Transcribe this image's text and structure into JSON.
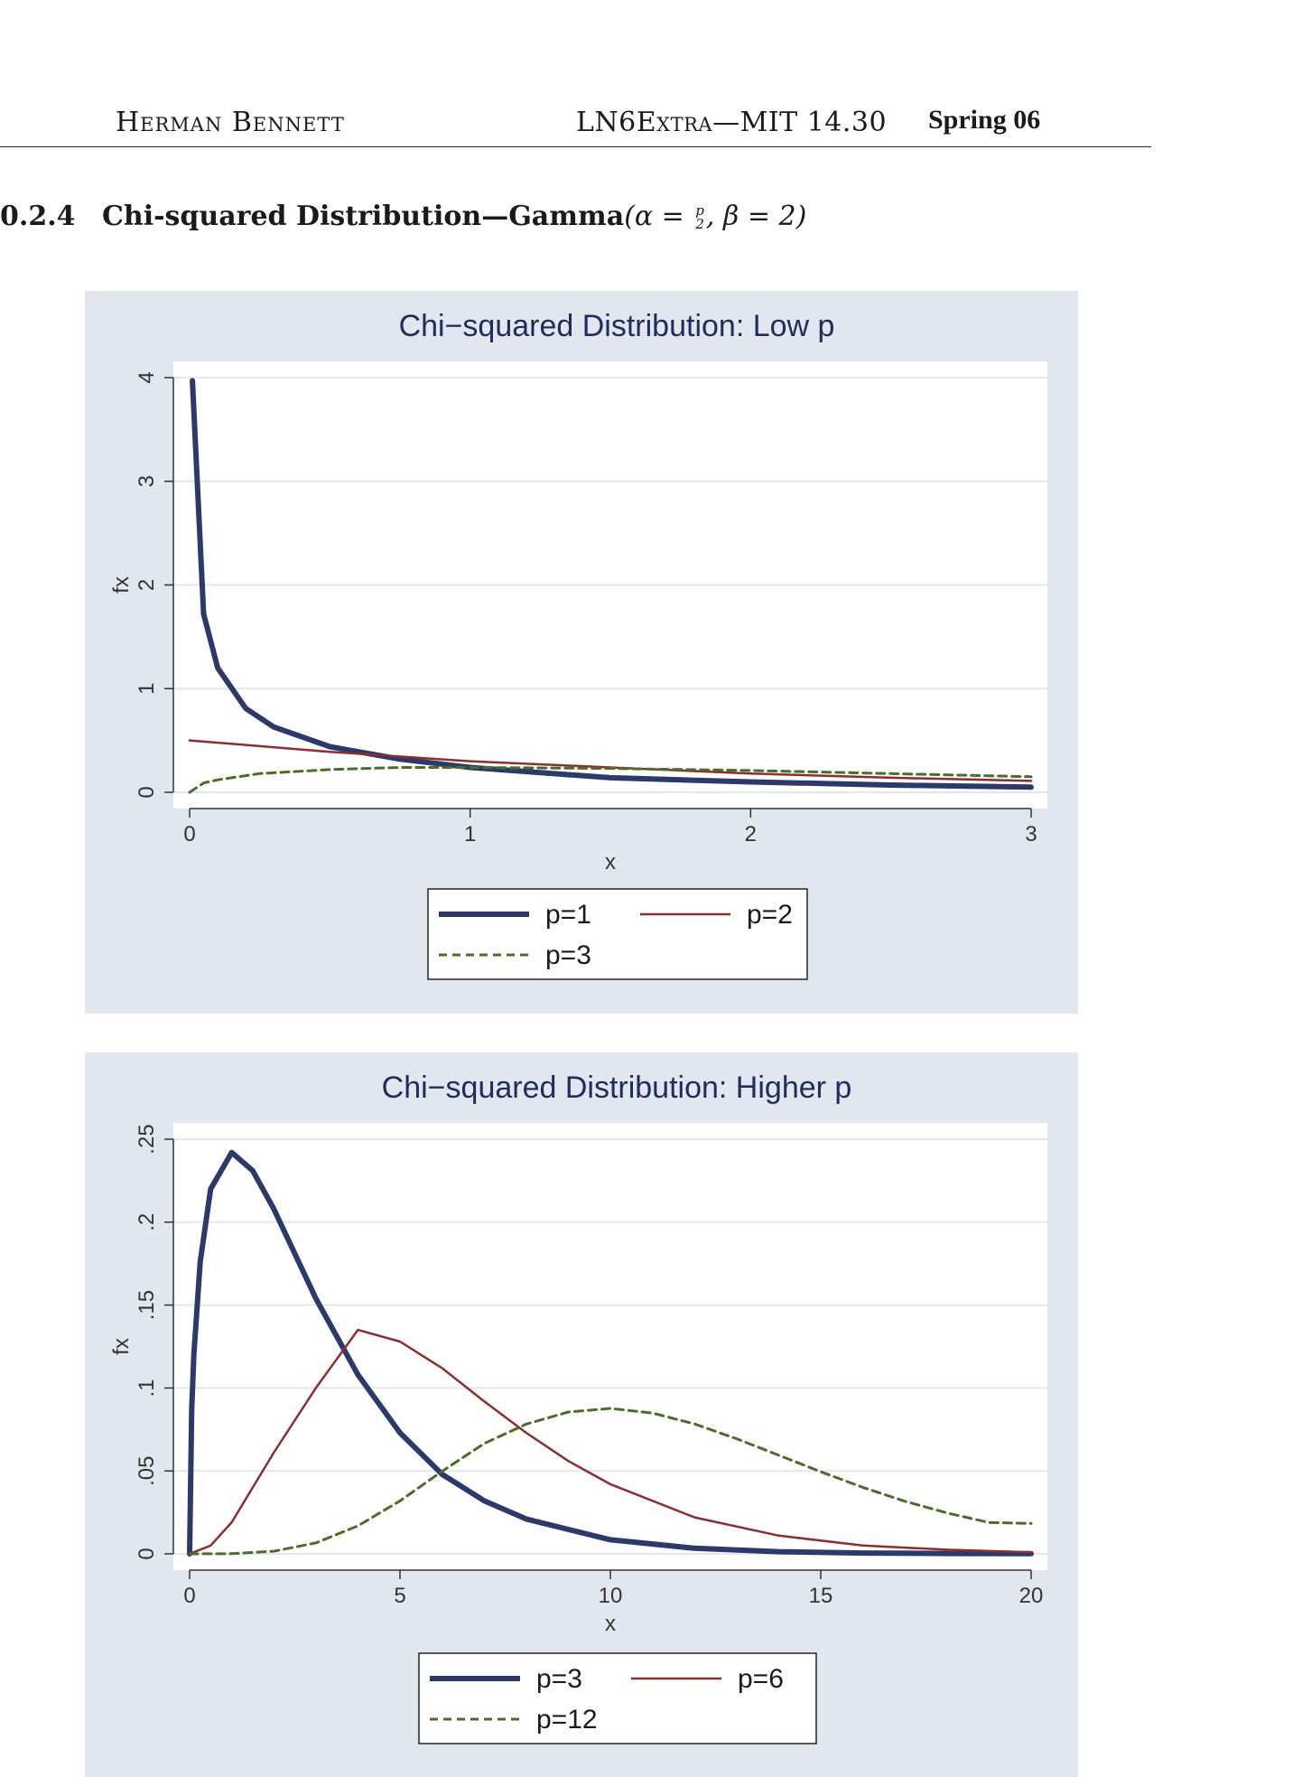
{
  "header": {
    "left": "Herman Bennett",
    "middle": "LN6Extra—MIT 14.30",
    "right": "Spring 06"
  },
  "section": {
    "number": "0.2.4",
    "title": "Chi-squared Distribution—Gamma",
    "formula_open": "(α =",
    "frac_num": "p",
    "frac_den": "2",
    "formula_close": ", β = 2)"
  },
  "chart_data": [
    {
      "type": "line",
      "title": "Chi−squared Distribution: Low p",
      "xlabel": "x",
      "ylabel": "fx",
      "xlim": [
        0,
        3
      ],
      "ylim": [
        0,
        4
      ],
      "xticks": [
        "0",
        "1",
        "2",
        "3"
      ],
      "yticks": [
        "0",
        "1",
        "2",
        "3",
        "4"
      ],
      "grid": true,
      "legend_position": "bottom",
      "series": [
        {
          "name": "p=1",
          "color": "#2b3a6b",
          "style": "thick-solid",
          "x": [
            0.01,
            0.05,
            0.1,
            0.2,
            0.3,
            0.5,
            0.75,
            1.0,
            1.5,
            2.0,
            2.5,
            3.0
          ],
          "y": [
            3.97,
            1.72,
            1.2,
            0.81,
            0.63,
            0.44,
            0.32,
            0.24,
            0.14,
            0.1,
            0.07,
            0.05
          ]
        },
        {
          "name": "p=2",
          "color": "#8b2e2e",
          "style": "solid",
          "x": [
            0,
            0.5,
            1.0,
            1.5,
            2.0,
            2.5,
            3.0
          ],
          "y": [
            0.5,
            0.39,
            0.3,
            0.24,
            0.18,
            0.14,
            0.11
          ]
        },
        {
          "name": "p=3",
          "color": "#4e6b2a",
          "style": "dashed",
          "x": [
            0,
            0.05,
            0.1,
            0.25,
            0.5,
            0.75,
            1.0,
            1.5,
            2.0,
            2.5,
            3.0
          ],
          "y": [
            0,
            0.09,
            0.12,
            0.18,
            0.22,
            0.24,
            0.24,
            0.23,
            0.21,
            0.18,
            0.15
          ]
        }
      ]
    },
    {
      "type": "line",
      "title": "Chi−squared Distribution: Higher p",
      "xlabel": "x",
      "ylabel": "fx",
      "xlim": [
        0,
        20
      ],
      "ylim": [
        0,
        0.25
      ],
      "xticks": [
        "0",
        "5",
        "10",
        "15",
        "20"
      ],
      "yticks": [
        "0",
        ".05",
        ".1",
        ".15",
        ".2",
        ".25"
      ],
      "grid": true,
      "legend_position": "bottom",
      "series": [
        {
          "name": "p=3",
          "color": "#2b3a6b",
          "style": "thick-solid",
          "x": [
            0,
            0.05,
            0.1,
            0.25,
            0.5,
            1,
            1.5,
            2,
            3,
            4,
            5,
            6,
            7,
            8,
            10,
            12,
            14,
            16,
            18,
            20
          ],
          "y": [
            0,
            0.087,
            0.12,
            0.176,
            0.22,
            0.242,
            0.231,
            0.208,
            0.154,
            0.108,
            0.073,
            0.048,
            0.032,
            0.021,
            0.0085,
            0.0034,
            0.0013,
            0.0005,
            0.0002,
            0.0001
          ]
        },
        {
          "name": "p=6",
          "color": "#8b2e2e",
          "style": "solid",
          "x": [
            0,
            0.5,
            1,
            2,
            3,
            4,
            5,
            6,
            7,
            8,
            9,
            10,
            12,
            14,
            16,
            18,
            20
          ],
          "y": [
            0,
            0.005,
            0.019,
            0.061,
            0.1,
            0.135,
            0.128,
            0.112,
            0.092,
            0.073,
            0.056,
            0.042,
            0.022,
            0.011,
            0.005,
            0.0025,
            0.001
          ]
        },
        {
          "name": "p=12",
          "color": "#4e6b2a",
          "style": "dashed",
          "x": [
            0,
            1,
            2,
            3,
            4,
            5,
            6,
            7,
            8,
            9,
            10,
            11,
            12,
            13,
            14,
            15,
            16,
            17,
            18,
            19,
            20
          ],
          "y": [
            0,
            0.0001,
            0.0016,
            0.0066,
            0.0169,
            0.0319,
            0.0498,
            0.0665,
            0.0782,
            0.0855,
            0.0877,
            0.0849,
            0.0783,
            0.0694,
            0.0595,
            0.0495,
            0.0401,
            0.0317,
            0.0247,
            0.0189,
            0.0183
          ]
        }
      ]
    }
  ]
}
